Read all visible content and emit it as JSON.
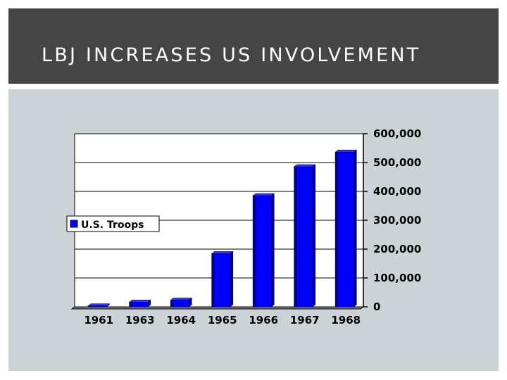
{
  "slide": {
    "title": "LBJ INCREASES US INVOLVEMENT"
  },
  "colors": {
    "title_bar": "#454545",
    "panel": "#ccd3d7",
    "bar_front": "#0000ff",
    "bar_side": "#00008b",
    "bar_top": "#3535ff"
  },
  "chart_data": {
    "type": "bar",
    "categories": [
      "1961",
      "1963",
      "1964",
      "1965",
      "1966",
      "1967",
      "1968"
    ],
    "series": [
      {
        "name": "U.S. Troops",
        "values": [
          3200,
          16300,
          23300,
          184300,
          385300,
          485600,
          536100
        ]
      }
    ],
    "y_ticks": [
      "0",
      "100,000",
      "200,000",
      "300,000",
      "400,000",
      "500,000",
      "600,000"
    ],
    "ylim": [
      0,
      600000
    ],
    "y_axis_side": "right",
    "grid": true,
    "legend_position": "left",
    "title": "",
    "xlabel": "",
    "ylabel": ""
  }
}
